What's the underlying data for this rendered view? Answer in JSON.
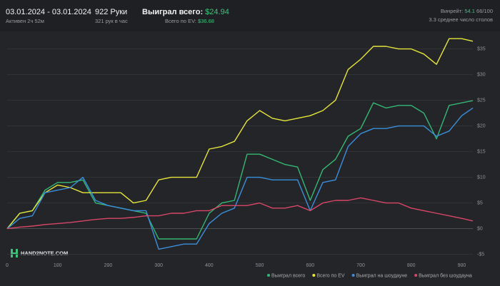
{
  "header": {
    "date_range": "03.01.2024 - 03.01.2024",
    "active": "Активен 2ч 52м",
    "hands": "922 Руки",
    "hands_per_hour": "321 рук в час",
    "won_label": "Выиграл всего:",
    "won_value": "$24.94",
    "ev_label": "Всего по EV:",
    "ev_value": "$36.68",
    "winrate_label": "Винрейт:",
    "winrate_value": "54.1",
    "winrate_unit": "66/100",
    "tables": "3.3 среднее число столов",
    "logo": "HAND2NOTE.COM"
  },
  "chart_data": {
    "type": "line",
    "x": [
      0,
      25,
      50,
      75,
      100,
      125,
      150,
      175,
      200,
      225,
      250,
      275,
      300,
      325,
      350,
      375,
      400,
      425,
      450,
      475,
      500,
      525,
      550,
      575,
      600,
      625,
      650,
      675,
      700,
      725,
      750,
      775,
      800,
      825,
      850,
      875,
      900,
      922
    ],
    "xlim": [
      0,
      922
    ],
    "xticks": [
      0,
      100,
      200,
      300,
      400,
      500,
      600,
      700,
      800,
      900
    ],
    "ylim": [
      -7,
      38
    ],
    "yticks": [
      {
        "value": -5,
        "label": "-$5"
      },
      {
        "value": 0,
        "label": "$0"
      },
      {
        "value": 5,
        "label": "$5"
      },
      {
        "value": 10,
        "label": "$10"
      },
      {
        "value": 15,
        "label": "$15"
      },
      {
        "value": 20,
        "label": "$20"
      },
      {
        "value": 25,
        "label": "$25"
      },
      {
        "value": 30,
        "label": "$30"
      },
      {
        "value": 35,
        "label": "$35"
      }
    ],
    "grid": true,
    "series": [
      {
        "name": "Выиграл всего",
        "color": "#33b874",
        "values": [
          0,
          3,
          3.5,
          7.5,
          9,
          9,
          9.5,
          5,
          4.5,
          4,
          3.5,
          3,
          -2,
          -2,
          -2,
          -2,
          3,
          5,
          5.5,
          14.5,
          14.5,
          13.5,
          12.5,
          12,
          5.5,
          11.5,
          13.5,
          18,
          19.5,
          24.5,
          23.5,
          24,
          24,
          22.5,
          17.5,
          24,
          24.5,
          24.94
        ]
      },
      {
        "name": "Всего по EV",
        "color": "#e6e63a",
        "values": [
          0,
          3,
          3.5,
          7,
          8.5,
          8,
          7,
          7,
          7,
          7,
          5,
          5.5,
          9.5,
          10,
          10,
          10,
          15.5,
          16,
          17,
          21,
          23,
          21.5,
          21,
          21.5,
          22,
          23,
          25,
          31,
          33,
          35.5,
          35.5,
          35,
          35,
          34,
          32,
          37,
          37,
          36.5
        ]
      },
      {
        "name": "Выиграл на шоудауне",
        "color": "#3a8fdc",
        "values": [
          0,
          2,
          2.5,
          7,
          7.5,
          8,
          10,
          5.5,
          4.5,
          4,
          3.5,
          3.5,
          -4,
          -3.5,
          -3,
          -3,
          1,
          3,
          4,
          10,
          10,
          9.5,
          9.5,
          9.5,
          3.5,
          9,
          9.5,
          16,
          18.5,
          19.5,
          19.5,
          20,
          20,
          20,
          18,
          19,
          22,
          23.5
        ]
      },
      {
        "name": "Выиграл без шоудауна",
        "color": "#d94668",
        "values": [
          0,
          0.3,
          0.5,
          0.8,
          1,
          1.2,
          1.5,
          1.8,
          2,
          2,
          2.2,
          2.5,
          2.5,
          3,
          3,
          3.5,
          3.5,
          4.5,
          4.5,
          4.5,
          5,
          4,
          4,
          4.5,
          3.5,
          5,
          5.5,
          5.5,
          6,
          5.5,
          5,
          5,
          4,
          3.5,
          3,
          2.5,
          2,
          1.5
        ]
      }
    ]
  }
}
